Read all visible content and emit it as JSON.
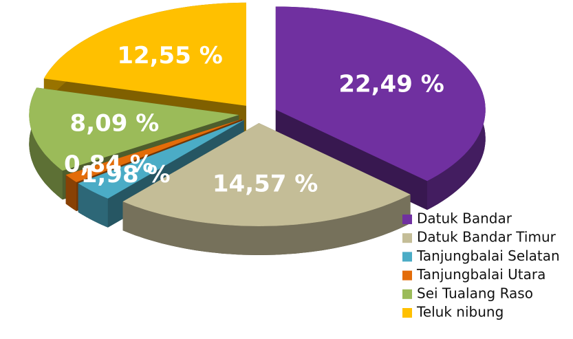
{
  "chart_data": {
    "type": "pie",
    "categories": [
      "Datuk Bandar",
      "Datuk Bandar Timur",
      "Tanjungbalai Selatan",
      "Tanjungbalai Utara",
      "Sei Tualang Raso",
      "Teluk nibung"
    ],
    "values": [
      22.49,
      14.57,
      1.98,
      0.84,
      8.09,
      12.55
    ],
    "value_labels": [
      "22,49 %",
      "14,57 %",
      "1,98 %",
      "0,84 %",
      "8,09 %",
      "12,55 %"
    ],
    "colors": [
      "#7030a0",
      "#c4bd97",
      "#4bacc6",
      "#e36c09",
      "#9bbb59",
      "#ffc000"
    ],
    "legend": "bottom-right"
  }
}
